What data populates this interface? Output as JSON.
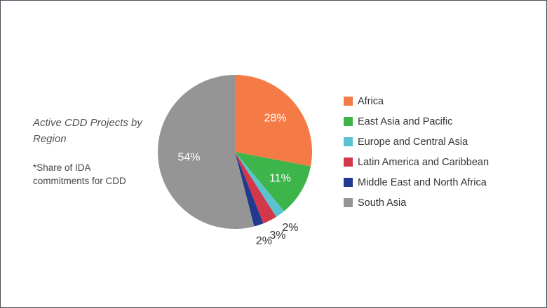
{
  "chart_data": {
    "type": "pie",
    "title": "Active CDD Projects by Region",
    "subtitle": "*Share of IDA commitments for CDD",
    "categories": [
      "Africa",
      "East Asia and Pacific",
      "Europe and Central Asia",
      "Latin America and Caribbean",
      "Middle East and North Africa",
      "South Asia"
    ],
    "values": [
      28,
      11,
      2,
      3,
      2,
      54
    ],
    "value_labels": [
      "28%",
      "11%",
      "2%",
      "3%",
      "2%",
      "54%"
    ],
    "colors": [
      "#f47b46",
      "#3db54a",
      "#5bc2d0",
      "#d2384a",
      "#213a8f",
      "#959595"
    ]
  }
}
